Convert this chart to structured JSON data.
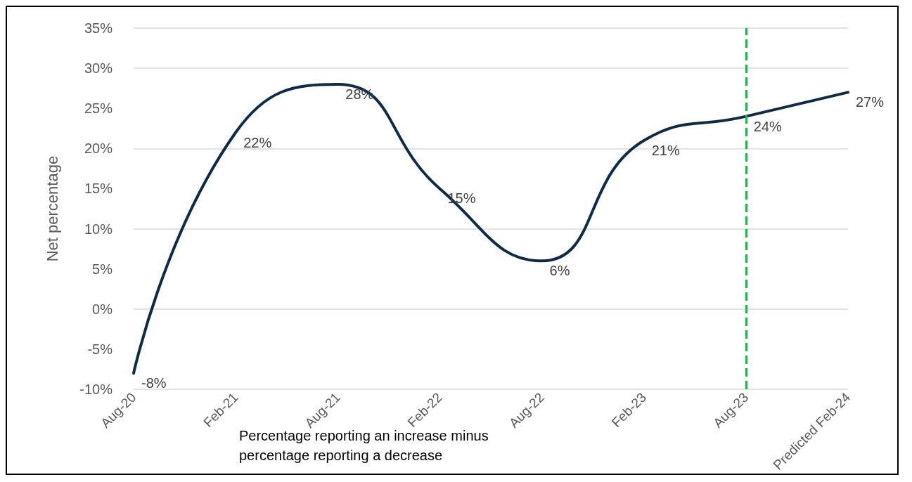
{
  "chart_data": {
    "type": "line",
    "ylabel": "Net percentage",
    "categories": [
      "Aug-20",
      "Feb-21",
      "Aug-21",
      "Feb-22",
      "Aug-22",
      "Feb-23",
      "Aug-23",
      "Predicted Feb-24"
    ],
    "series": [
      {
        "color": "#0e2a47",
        "values": [
          -8,
          22,
          28,
          15,
          6,
          21,
          24,
          27
        ],
        "value_labels": [
          "-8%",
          "22%",
          "28%",
          "15%",
          "6%",
          "21%",
          "24%",
          "27%"
        ]
      }
    ],
    "ylim": [
      -10,
      35
    ],
    "yticks": [
      {
        "value": -10,
        "label": "-10%"
      },
      {
        "value": -5,
        "label": "-5%"
      },
      {
        "value": 0,
        "label": "0%"
      },
      {
        "value": 5,
        "label": "5%"
      },
      {
        "value": 10,
        "label": "10%"
      },
      {
        "value": 15,
        "label": "15%"
      },
      {
        "value": 20,
        "label": "20%"
      },
      {
        "value": 25,
        "label": "25%"
      },
      {
        "value": 30,
        "label": "30%"
      },
      {
        "value": 35,
        "label": "35%"
      }
    ],
    "grid": "y",
    "marker": "none",
    "line_style": "solid",
    "ref_lines": [
      {
        "axis": "x",
        "value": "Aug-23",
        "color": "#22b14c",
        "line_style": "dashed"
      }
    ],
    "annotations": [
      "Percentage reporting an increase minus percentage reporting a decrease"
    ]
  }
}
